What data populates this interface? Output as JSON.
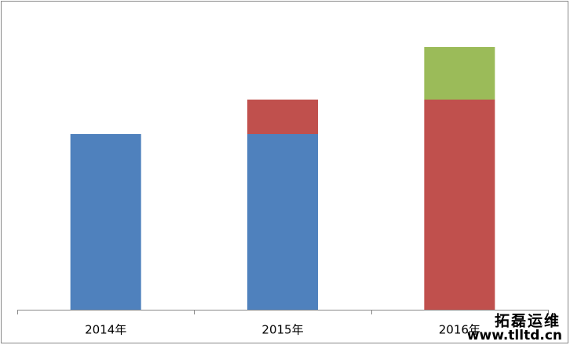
{
  "chart_data": {
    "type": "stacked_bar",
    "categories": [
      "2014年",
      "2015年",
      "2016年"
    ],
    "series": [
      {
        "color": "#4f81bd",
        "values": [
          224,
          224,
          null
        ]
      },
      {
        "color": "#c0504d",
        "values": [
          null,
          44,
          268
        ]
      },
      {
        "color": "#9bbb59",
        "values": [
          null,
          null,
          67
        ]
      }
    ],
    "ylim": [
      0,
      380
    ]
  },
  "watermark": {
    "title": "拓磊运维",
    "url": "www.tlltd.cn"
  }
}
